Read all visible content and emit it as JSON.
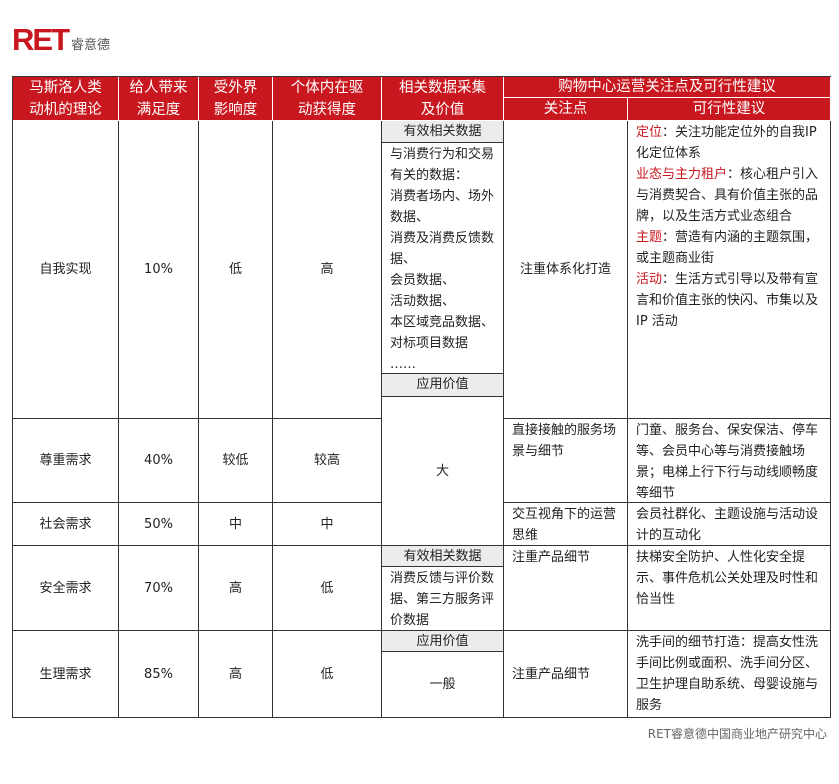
{
  "logo": {
    "mark": "RET",
    "name": "睿意德"
  },
  "headers": {
    "theory": [
      "马斯洛人类",
      "动机的理论"
    ],
    "satisfaction": [
      "给人带来",
      "满足度"
    ],
    "external": [
      "受外界",
      "影响度"
    ],
    "internal": [
      "个体内在驱",
      "动获得度"
    ],
    "data": [
      "相关数据采集",
      "及价值"
    ],
    "mall": "购物中心运营关注点及可行性建议",
    "focus": "关注点",
    "suggestion": "可行性建议"
  },
  "rows": [
    {
      "need": "自我实现",
      "satisfaction": "10%",
      "external": "低",
      "internal": "高"
    },
    {
      "need": "尊重需求",
      "satisfaction": "40%",
      "external": "较低",
      "internal": "较高"
    },
    {
      "need": "社会需求",
      "satisfaction": "50%",
      "external": "中",
      "internal": "中"
    },
    {
      "need": "安全需求",
      "satisfaction": "70%",
      "external": "高",
      "internal": "低"
    },
    {
      "need": "生理需求",
      "satisfaction": "85%",
      "external": "高",
      "internal": "低"
    }
  ],
  "data_col": {
    "effective_label": "有效相关数据",
    "value_label": "应用价值",
    "group1_items": [
      "与消费行为和交易有关的数据：",
      "消费者场内、场外数据、",
      "消费及消费反馈数据、",
      "会员数据、",
      "活动数据、",
      "本区域竞品数据、",
      "对标项目数据",
      "……"
    ],
    "group1_value": "大",
    "group2_items": "消费反馈与评价数据、第三方服务评价数据",
    "group2_value": "一般"
  },
  "focus": [
    "注重体系化打造",
    "直接接触的服务场景与细节",
    "交互视角下的运营思维",
    "注重产品细节",
    "注重产品细节"
  ],
  "suggestions": {
    "r1": [
      {
        "key": "定位",
        "text": "：关注功能定位外的自我IP 化定位体系"
      },
      {
        "key": "业态与主力租户",
        "text": "：核心租户引入与消费契合、具有价值主张的品牌，以及生活方式业态组合"
      },
      {
        "key": "主题",
        "text": "：营造有内涵的主题氛围，或主题商业街"
      },
      {
        "key": "活动",
        "text": "：生活方式引导以及带有宣言和价值主张的快闪、市集以及 IP 活动"
      }
    ],
    "r2": "门童、服务台、保安保洁、停车等、会员中心等与消费接触场景；电梯上行下行与动线顺畅度等细节",
    "r3": "会员社群化、主题设施与活动设计的互动化",
    "r4": "扶梯安全防护、人性化安全提示、事件危机公关处理及时性和恰当性",
    "r5": "洗手间的细节打造：提高女性洗手间比例或面积、洗手间分区、卫生护理自助系统、母婴设施与服务"
  },
  "footer": "RET睿意德中国商业地产研究中心",
  "colors": {
    "header": "#c8171e",
    "subheader": "#ececec"
  }
}
